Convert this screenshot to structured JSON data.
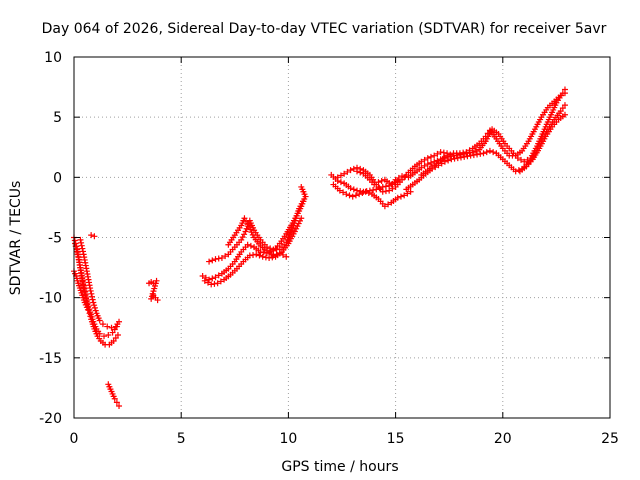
{
  "chart_data": {
    "type": "scatter",
    "title": "Day 064 of 2026, Sidereal Day-to-day VTEC variation (SDTVAR) for receiver 5avr",
    "xlabel": "GPS time / hours",
    "ylabel": "SDTVAR / TECUs",
    "xlim": [
      0,
      25
    ],
    "ylim": [
      -20,
      10
    ],
    "xticks": [
      "0",
      "5",
      "10",
      "15",
      "20",
      "25"
    ],
    "yticks": [
      "-20",
      "-15",
      "-10",
      "-5",
      "0",
      "5",
      "10"
    ],
    "grid": true,
    "marker": "+",
    "color": "#ff0000",
    "series": [
      {
        "points": [
          [
            0.0,
            -5.0
          ],
          [
            0.15,
            -6.0
          ],
          [
            0.3,
            -7.5
          ],
          [
            0.45,
            -9.0
          ],
          [
            0.6,
            -10.2
          ],
          [
            0.75,
            -11.2
          ],
          [
            0.9,
            -12.0
          ],
          [
            1.05,
            -12.6
          ],
          [
            1.2,
            -13.0
          ],
          [
            1.4,
            -13.2
          ],
          [
            1.6,
            -13.1
          ],
          [
            1.8,
            -12.9
          ],
          [
            2.0,
            -12.4
          ]
        ]
      },
      {
        "points": [
          [
            0.05,
            -5.5
          ],
          [
            0.2,
            -6.6
          ],
          [
            0.35,
            -8.2
          ],
          [
            0.5,
            -9.6
          ],
          [
            0.65,
            -10.8
          ],
          [
            0.8,
            -11.8
          ],
          [
            0.95,
            -12.6
          ],
          [
            1.1,
            -13.2
          ],
          [
            1.25,
            -13.6
          ],
          [
            1.45,
            -13.9
          ],
          [
            1.65,
            -13.9
          ],
          [
            1.85,
            -13.6
          ],
          [
            2.05,
            -13.1
          ]
        ]
      },
      {
        "points": [
          [
            0.3,
            -5.2
          ],
          [
            0.45,
            -6.4
          ],
          [
            0.6,
            -7.8
          ],
          [
            0.75,
            -9.2
          ],
          [
            0.9,
            -10.4
          ],
          [
            1.05,
            -11.3
          ],
          [
            1.2,
            -11.9
          ],
          [
            1.35,
            -12.2
          ],
          [
            1.55,
            -12.4
          ],
          [
            1.75,
            -12.5
          ],
          [
            1.95,
            -12.4
          ],
          [
            2.1,
            -12.0
          ]
        ]
      },
      {
        "points": [
          [
            0.0,
            -7.8
          ],
          [
            0.1,
            -8.2
          ],
          [
            0.2,
            -8.8
          ],
          [
            0.35,
            -9.6
          ],
          [
            0.5,
            -10.4
          ],
          [
            0.65,
            -11.0
          ]
        ]
      },
      {
        "points": [
          [
            0.8,
            -4.8
          ],
          [
            0.95,
            -4.9
          ]
        ]
      },
      {
        "points": [
          [
            1.6,
            -17.2
          ],
          [
            1.7,
            -17.6
          ],
          [
            1.8,
            -18.0
          ],
          [
            1.9,
            -18.4
          ],
          [
            2.0,
            -18.7
          ],
          [
            2.1,
            -19.0
          ]
        ]
      },
      {
        "points": [
          [
            3.5,
            -8.8
          ],
          [
            3.6,
            -8.7
          ],
          [
            3.7,
            -8.8
          ],
          [
            3.85,
            -8.6
          ],
          [
            3.6,
            -10.1
          ],
          [
            3.7,
            -9.8
          ],
          [
            3.8,
            -10.0
          ],
          [
            3.9,
            -10.2
          ]
        ]
      },
      {
        "points": [
          [
            6.0,
            -8.2
          ],
          [
            6.3,
            -8.5
          ],
          [
            6.6,
            -8.3
          ],
          [
            6.9,
            -8.0
          ],
          [
            7.2,
            -7.6
          ],
          [
            7.5,
            -7.0
          ],
          [
            7.8,
            -6.2
          ],
          [
            8.1,
            -5.6
          ],
          [
            8.4,
            -5.8
          ],
          [
            8.7,
            -6.2
          ],
          [
            9.0,
            -6.3
          ],
          [
            9.3,
            -6.1
          ],
          [
            9.6,
            -5.5
          ],
          [
            9.9,
            -4.7
          ],
          [
            10.2,
            -3.8
          ],
          [
            10.5,
            -2.8
          ],
          [
            10.7,
            -2.0
          ]
        ]
      },
      {
        "points": [
          [
            6.1,
            -8.6
          ],
          [
            6.4,
            -8.9
          ],
          [
            6.7,
            -8.8
          ],
          [
            7.0,
            -8.5
          ],
          [
            7.3,
            -8.1
          ],
          [
            7.6,
            -7.6
          ],
          [
            7.9,
            -7.0
          ],
          [
            8.2,
            -6.5
          ],
          [
            8.5,
            -6.4
          ],
          [
            8.8,
            -6.6
          ],
          [
            9.1,
            -6.7
          ],
          [
            9.4,
            -6.6
          ],
          [
            9.7,
            -6.2
          ],
          [
            10.0,
            -5.5
          ],
          [
            10.3,
            -4.5
          ],
          [
            10.6,
            -3.4
          ]
        ]
      },
      {
        "points": [
          [
            6.3,
            -7.0
          ],
          [
            6.6,
            -6.8
          ],
          [
            6.9,
            -6.7
          ],
          [
            7.2,
            -6.4
          ],
          [
            7.5,
            -5.8
          ],
          [
            7.8,
            -5.2
          ],
          [
            8.0,
            -4.5
          ],
          [
            8.2,
            -3.6
          ],
          [
            8.4,
            -4.4
          ],
          [
            8.7,
            -5.2
          ],
          [
            9.0,
            -5.8
          ],
          [
            9.3,
            -6.0
          ],
          [
            9.6,
            -6.0
          ],
          [
            9.9,
            -5.4
          ],
          [
            10.2,
            -4.2
          ],
          [
            10.5,
            -2.6
          ],
          [
            10.8,
            -1.6
          ],
          [
            10.6,
            -0.8
          ]
        ]
      },
      {
        "points": [
          [
            7.2,
            -5.6
          ],
          [
            7.5,
            -4.8
          ],
          [
            7.8,
            -4.0
          ],
          [
            7.95,
            -3.4
          ],
          [
            8.1,
            -3.9
          ],
          [
            8.4,
            -5.0
          ],
          [
            8.7,
            -5.7
          ],
          [
            9.0,
            -6.1
          ],
          [
            9.3,
            -6.5
          ],
          [
            9.6,
            -6.3
          ],
          [
            9.9,
            -6.6
          ]
        ]
      },
      {
        "points": [
          [
            12.0,
            0.2
          ],
          [
            12.3,
            -0.3
          ],
          [
            12.6,
            -0.5
          ],
          [
            12.9,
            -0.9
          ],
          [
            13.2,
            -1.1
          ],
          [
            13.5,
            -1.2
          ],
          [
            13.8,
            -1.1
          ],
          [
            14.1,
            -1.0
          ],
          [
            14.4,
            -0.8
          ],
          [
            14.7,
            -0.7
          ],
          [
            15.0,
            -0.4
          ]
        ]
      },
      {
        "points": [
          [
            12.1,
            -0.6
          ],
          [
            12.4,
            -1.1
          ],
          [
            12.7,
            -1.4
          ],
          [
            13.0,
            -1.6
          ],
          [
            13.3,
            -1.4
          ],
          [
            13.6,
            -1.2
          ],
          [
            13.9,
            -1.4
          ],
          [
            14.2,
            -1.8
          ],
          [
            14.5,
            -2.4
          ],
          [
            14.8,
            -2.1
          ],
          [
            15.1,
            -1.7
          ],
          [
            15.4,
            -1.5
          ],
          [
            15.7,
            -1.2
          ]
        ]
      },
      {
        "points": [
          [
            12.3,
            0.0
          ],
          [
            12.6,
            0.3
          ],
          [
            12.9,
            0.6
          ],
          [
            13.2,
            0.8
          ],
          [
            13.5,
            0.6
          ],
          [
            13.8,
            0.2
          ],
          [
            14.1,
            -0.6
          ],
          [
            14.4,
            -1.2
          ],
          [
            14.7,
            -1.1
          ],
          [
            15.0,
            -0.8
          ],
          [
            15.3,
            -0.2
          ],
          [
            15.6,
            0.4
          ],
          [
            15.9,
            0.9
          ],
          [
            16.2,
            1.3
          ],
          [
            16.5,
            1.6
          ],
          [
            16.8,
            1.8
          ],
          [
            17.1,
            2.1
          ],
          [
            17.4,
            2.0
          ]
        ]
      },
      {
        "points": [
          [
            15.0,
            -0.2
          ],
          [
            15.3,
            0.1
          ],
          [
            15.6,
            0.0
          ],
          [
            15.9,
            0.4
          ],
          [
            16.2,
            0.8
          ],
          [
            16.5,
            1.1
          ],
          [
            16.8,
            1.3
          ],
          [
            17.1,
            1.5
          ],
          [
            17.4,
            1.7
          ],
          [
            17.7,
            1.8
          ],
          [
            18.0,
            1.9
          ],
          [
            18.3,
            2.0
          ],
          [
            18.6,
            2.1
          ],
          [
            18.9,
            2.3
          ],
          [
            19.2,
            3.0
          ],
          [
            19.5,
            4.0
          ],
          [
            19.8,
            3.6
          ],
          [
            20.1,
            2.8
          ],
          [
            20.4,
            2.2
          ],
          [
            20.7,
            1.6
          ],
          [
            21.0,
            1.3
          ],
          [
            21.3,
            1.6
          ],
          [
            21.6,
            2.6
          ],
          [
            21.9,
            3.8
          ],
          [
            22.2,
            5.0
          ],
          [
            22.5,
            6.2
          ],
          [
            22.8,
            7.0
          ],
          [
            22.9,
            7.3
          ]
        ]
      },
      {
        "points": [
          [
            15.5,
            -1.0
          ],
          [
            15.8,
            -0.6
          ],
          [
            16.1,
            -0.2
          ],
          [
            16.4,
            0.3
          ],
          [
            16.7,
            0.7
          ],
          [
            17.0,
            1.0
          ],
          [
            17.3,
            1.3
          ],
          [
            17.6,
            1.5
          ],
          [
            17.9,
            1.6
          ],
          [
            18.2,
            1.7
          ],
          [
            18.5,
            1.8
          ],
          [
            18.8,
            1.9
          ],
          [
            19.1,
            2.0
          ],
          [
            19.4,
            2.2
          ],
          [
            19.7,
            2.0
          ],
          [
            20.0,
            1.5
          ],
          [
            20.3,
            1.0
          ],
          [
            20.6,
            0.5
          ],
          [
            20.9,
            0.7
          ],
          [
            21.2,
            1.2
          ],
          [
            21.5,
            2.0
          ],
          [
            21.8,
            3.0
          ],
          [
            22.1,
            4.0
          ],
          [
            22.4,
            4.8
          ],
          [
            22.7,
            5.5
          ],
          [
            22.9,
            6.0
          ]
        ]
      },
      {
        "points": [
          [
            16.2,
            0.2
          ],
          [
            16.5,
            0.6
          ],
          [
            16.8,
            1.0
          ],
          [
            17.1,
            1.4
          ],
          [
            17.4,
            1.8
          ],
          [
            17.7,
            2.0
          ],
          [
            18.0,
            2.0
          ],
          [
            18.3,
            2.1
          ],
          [
            18.6,
            2.4
          ],
          [
            18.9,
            2.8
          ],
          [
            19.2,
            3.4
          ],
          [
            19.4,
            3.9
          ],
          [
            19.7,
            3.2
          ],
          [
            20.0,
            2.4
          ],
          [
            20.3,
            1.8
          ],
          [
            20.6,
            1.8
          ],
          [
            20.9,
            2.2
          ],
          [
            21.2,
            3.0
          ],
          [
            21.5,
            4.0
          ],
          [
            21.8,
            5.0
          ],
          [
            22.1,
            5.8
          ],
          [
            22.4,
            6.3
          ],
          [
            22.7,
            6.8
          ],
          [
            22.9,
            7.0
          ]
        ]
      },
      {
        "points": [
          [
            13.2,
            0.5
          ],
          [
            13.5,
            0.3
          ],
          [
            13.8,
            -0.2
          ],
          [
            14.0,
            -0.6
          ],
          [
            14.2,
            -0.4
          ],
          [
            14.5,
            -0.2
          ],
          [
            14.8,
            -0.6
          ],
          [
            15.1,
            -0.3
          ]
        ]
      },
      {
        "points": [
          [
            20.8,
            0.5
          ],
          [
            21.1,
            0.9
          ],
          [
            21.4,
            1.5
          ],
          [
            21.7,
            2.4
          ],
          [
            22.0,
            3.4
          ],
          [
            22.3,
            4.2
          ],
          [
            22.6,
            4.8
          ],
          [
            22.9,
            5.2
          ]
        ]
      }
    ]
  }
}
